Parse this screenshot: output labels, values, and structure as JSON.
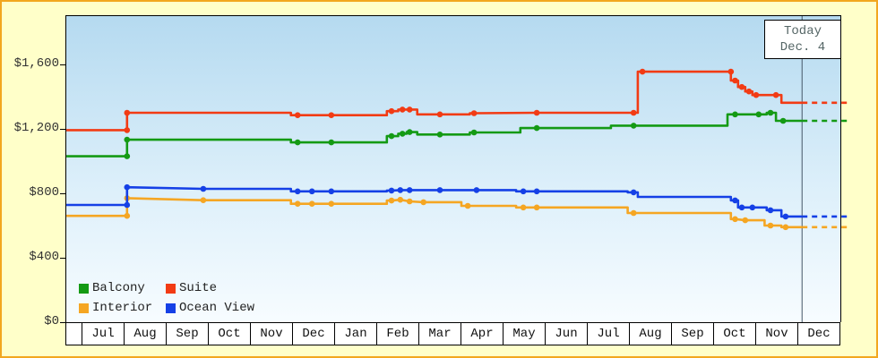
{
  "colors": {
    "frame_bg": "#FFFFC9",
    "frame_border": "#F2A71F",
    "plot_gradient_top": "#B5DAF0",
    "plot_gradient_bottom": "#F7FCFF",
    "today_line": "#445566"
  },
  "today_box": {
    "line1": "Today",
    "line2": "Dec. 4"
  },
  "y_axis": {
    "ticks": [
      {
        "label": "$0",
        "value": 0
      },
      {
        "label": "$400",
        "value": 400
      },
      {
        "label": "$800",
        "value": 800
      },
      {
        "label": "$1,200",
        "value": 1200
      },
      {
        "label": "$1,600",
        "value": 1600
      }
    ]
  },
  "x_axis": {
    "months": [
      "Jul",
      "Aug",
      "Sep",
      "Oct",
      "Nov",
      "Dec",
      "Jan",
      "Feb",
      "Mar",
      "Apr",
      "May",
      "Jun",
      "Jul",
      "Aug",
      "Sep",
      "Oct",
      "Nov",
      "Dec"
    ]
  },
  "legend": {
    "items": [
      "Balcony",
      "Suite",
      "Interior",
      "Ocean View"
    ]
  },
  "chart_data": {
    "type": "line",
    "x_unit": "months from first Jul (fractional)",
    "ylim": [
      0,
      1900
    ],
    "today_x": 17.09,
    "today_label": "Dec. 4",
    "forecast_end_x": 18.25,
    "grid": false,
    "legend_position": "bottom-left",
    "series": [
      {
        "name": "Balcony",
        "color": "#149A14",
        "forecast_value": 1250,
        "points": [
          [
            -0.38,
            1030,
            0
          ],
          [
            1.06,
            1030,
            1
          ],
          [
            1.06,
            1133,
            1
          ],
          [
            4.95,
            1133,
            0
          ],
          [
            4.95,
            1116,
            0
          ],
          [
            5.11,
            1116,
            1
          ],
          [
            5.91,
            1116,
            1
          ],
          [
            7.23,
            1116,
            0
          ],
          [
            7.23,
            1155,
            0
          ],
          [
            7.34,
            1155,
            1
          ],
          [
            7.5,
            1155,
            0
          ],
          [
            7.5,
            1170,
            0
          ],
          [
            7.6,
            1170,
            1
          ],
          [
            7.7,
            1170,
            0
          ],
          [
            7.7,
            1180,
            0
          ],
          [
            7.77,
            1180,
            1
          ],
          [
            7.95,
            1180,
            0
          ],
          [
            7.95,
            1165,
            0
          ],
          [
            8.49,
            1165,
            1
          ],
          [
            9.2,
            1165,
            0
          ],
          [
            9.2,
            1178,
            0
          ],
          [
            9.3,
            1178,
            1
          ],
          [
            10.4,
            1178,
            0
          ],
          [
            10.4,
            1205,
            0
          ],
          [
            10.79,
            1205,
            1
          ],
          [
            12.55,
            1205,
            0
          ],
          [
            12.55,
            1220,
            0
          ],
          [
            13.09,
            1220,
            1
          ],
          [
            15.32,
            1220,
            0
          ],
          [
            15.32,
            1290,
            0
          ],
          [
            15.5,
            1290,
            1
          ],
          [
            16.06,
            1290,
            1
          ],
          [
            16.25,
            1290,
            0
          ],
          [
            16.25,
            1300,
            0
          ],
          [
            16.34,
            1300,
            1
          ],
          [
            16.47,
            1300,
            0
          ],
          [
            16.47,
            1250,
            0
          ],
          [
            16.64,
            1250,
            1
          ],
          [
            17.09,
            1250,
            0
          ]
        ]
      },
      {
        "name": "Suite",
        "color": "#F23B14",
        "forecast_value": 1362,
        "points": [
          [
            -0.38,
            1192,
            0
          ],
          [
            1.06,
            1192,
            1
          ],
          [
            1.06,
            1300,
            1
          ],
          [
            4.95,
            1300,
            0
          ],
          [
            4.95,
            1285,
            0
          ],
          [
            5.11,
            1285,
            1
          ],
          [
            5.91,
            1285,
            1
          ],
          [
            7.23,
            1285,
            0
          ],
          [
            7.23,
            1310,
            0
          ],
          [
            7.34,
            1310,
            1
          ],
          [
            7.5,
            1310,
            0
          ],
          [
            7.5,
            1320,
            0
          ],
          [
            7.6,
            1320,
            1
          ],
          [
            7.77,
            1320,
            1
          ],
          [
            7.95,
            1320,
            0
          ],
          [
            7.95,
            1290,
            0
          ],
          [
            8.49,
            1290,
            1
          ],
          [
            9.2,
            1290,
            0
          ],
          [
            9.2,
            1297,
            0
          ],
          [
            9.3,
            1297,
            1
          ],
          [
            10.79,
            1300,
            1
          ],
          [
            13.09,
            1300,
            1
          ],
          [
            13.19,
            1300,
            0
          ],
          [
            13.19,
            1555,
            0
          ],
          [
            13.3,
            1555,
            1
          ],
          [
            15.4,
            1555,
            1
          ],
          [
            15.4,
            1500,
            0
          ],
          [
            15.5,
            1500,
            1
          ],
          [
            15.57,
            1500,
            0
          ],
          [
            15.57,
            1460,
            0
          ],
          [
            15.66,
            1460,
            1
          ],
          [
            15.74,
            1460,
            0
          ],
          [
            15.74,
            1432,
            0
          ],
          [
            15.83,
            1432,
            1
          ],
          [
            15.91,
            1432,
            0
          ],
          [
            15.91,
            1410,
            0
          ],
          [
            16.0,
            1410,
            1
          ],
          [
            16.47,
            1410,
            1
          ],
          [
            16.6,
            1410,
            0
          ],
          [
            16.6,
            1362,
            0
          ],
          [
            17.09,
            1362,
            0
          ]
        ]
      },
      {
        "name": "Interior",
        "color": "#F5A623",
        "forecast_value": 590,
        "points": [
          [
            -0.38,
            660,
            0
          ],
          [
            1.06,
            660,
            1
          ],
          [
            1.06,
            770,
            1
          ],
          [
            2.87,
            757,
            1
          ],
          [
            4.95,
            757,
            0
          ],
          [
            4.95,
            735,
            0
          ],
          [
            5.11,
            735,
            1
          ],
          [
            5.45,
            735,
            1
          ],
          [
            5.91,
            735,
            1
          ],
          [
            7.23,
            735,
            0
          ],
          [
            7.23,
            755,
            0
          ],
          [
            7.34,
            755,
            1
          ],
          [
            7.55,
            760,
            1
          ],
          [
            7.77,
            750,
            1
          ],
          [
            8.1,
            745,
            1
          ],
          [
            9.0,
            745,
            0
          ],
          [
            9.0,
            722,
            0
          ],
          [
            9.15,
            722,
            1
          ],
          [
            10.3,
            722,
            0
          ],
          [
            10.3,
            712,
            0
          ],
          [
            10.47,
            712,
            1
          ],
          [
            10.79,
            712,
            1
          ],
          [
            12.95,
            712,
            0
          ],
          [
            12.95,
            678,
            0
          ],
          [
            13.09,
            678,
            1
          ],
          [
            15.4,
            678,
            0
          ],
          [
            15.4,
            640,
            0
          ],
          [
            15.5,
            640,
            1
          ],
          [
            15.74,
            633,
            1
          ],
          [
            16.2,
            633,
            0
          ],
          [
            16.2,
            600,
            0
          ],
          [
            16.34,
            600,
            1
          ],
          [
            16.6,
            600,
            0
          ],
          [
            16.6,
            590,
            0
          ],
          [
            16.7,
            590,
            1
          ],
          [
            17.09,
            590,
            0
          ]
        ]
      },
      {
        "name": "Ocean View",
        "color": "#1540E6",
        "forecast_value": 656,
        "points": [
          [
            -0.38,
            728,
            0
          ],
          [
            1.06,
            728,
            1
          ],
          [
            1.06,
            838,
            1
          ],
          [
            2.87,
            828,
            1
          ],
          [
            4.95,
            828,
            0
          ],
          [
            4.95,
            812,
            0
          ],
          [
            5.11,
            812,
            1
          ],
          [
            5.45,
            812,
            1
          ],
          [
            5.91,
            812,
            1
          ],
          [
            7.23,
            812,
            0
          ],
          [
            7.23,
            817,
            0
          ],
          [
            7.34,
            817,
            1
          ],
          [
            7.55,
            820,
            1
          ],
          [
            7.77,
            820,
            1
          ],
          [
            8.49,
            820,
            1
          ],
          [
            9.36,
            820,
            1
          ],
          [
            10.3,
            820,
            0
          ],
          [
            10.3,
            812,
            0
          ],
          [
            10.47,
            812,
            1
          ],
          [
            10.79,
            812,
            1
          ],
          [
            12.95,
            812,
            0
          ],
          [
            12.95,
            806,
            0
          ],
          [
            13.09,
            806,
            1
          ],
          [
            13.19,
            806,
            0
          ],
          [
            13.19,
            778,
            0
          ],
          [
            15.4,
            778,
            0
          ],
          [
            15.4,
            756,
            0
          ],
          [
            15.5,
            756,
            1
          ],
          [
            15.57,
            756,
            0
          ],
          [
            15.57,
            712,
            0
          ],
          [
            15.66,
            712,
            1
          ],
          [
            15.91,
            712,
            1
          ],
          [
            16.25,
            712,
            0
          ],
          [
            16.25,
            695,
            0
          ],
          [
            16.34,
            695,
            1
          ],
          [
            16.6,
            695,
            0
          ],
          [
            16.6,
            656,
            0
          ],
          [
            16.7,
            656,
            1
          ],
          [
            17.09,
            656,
            0
          ]
        ]
      }
    ]
  }
}
